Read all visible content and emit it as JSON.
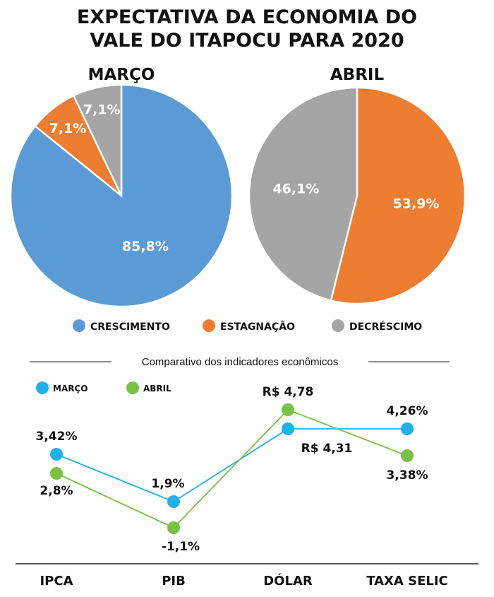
{
  "title_lines": [
    "EXPECTATIVA DA ECONOMIA DO",
    "VALE DO ITAPOCU PARA 2020"
  ],
  "colors": {
    "crescimento": "#5b9bd5",
    "estagnacao": "#ed7d31",
    "decrescimo": "#a5a5a5",
    "marco": "#1fb1ea",
    "abril": "#79c142"
  },
  "chart_data": [
    {
      "type": "pie",
      "title": "MARÇO",
      "slices": [
        {
          "name": "CRESCIMENTO",
          "value": 85.8,
          "label": "85,8%"
        },
        {
          "name": "ESTAGNAÇÃO",
          "value": 7.1,
          "label": "7,1%"
        },
        {
          "name": "DECRÉSCIMO",
          "value": 7.1,
          "label": "7,1%"
        }
      ]
    },
    {
      "type": "pie",
      "title": "ABRIL",
      "slices": [
        {
          "name": "ESTAGNAÇÃO",
          "value": 53.9,
          "label": "53,9%"
        },
        {
          "name": "DECRÉSCIMO",
          "value": 46.1,
          "label": "46,1%"
        }
      ]
    },
    {
      "type": "line",
      "title": "Comparativo dos indicadores econômicos",
      "categories": [
        "IPCA",
        "PIB",
        "DÓLAR",
        "TAXA SELIC"
      ],
      "series": [
        {
          "name": "MARÇO",
          "values": [
            3.42,
            1.9,
            4.31,
            4.26
          ],
          "labels": [
            "3,42%",
            "1,9%",
            "R$ 4,31",
            "4,26%"
          ]
        },
        {
          "name": "ABRIL",
          "values": [
            2.8,
            -1.1,
            4.78,
            3.38
          ],
          "labels": [
            "2,8%",
            "-1,1%",
            "R$ 4,78",
            "3,38%"
          ]
        }
      ]
    }
  ],
  "legend": {
    "items": [
      "CRESCIMENTO",
      "ESTAGNAÇÃO",
      "DECRÉSCIMO"
    ]
  }
}
